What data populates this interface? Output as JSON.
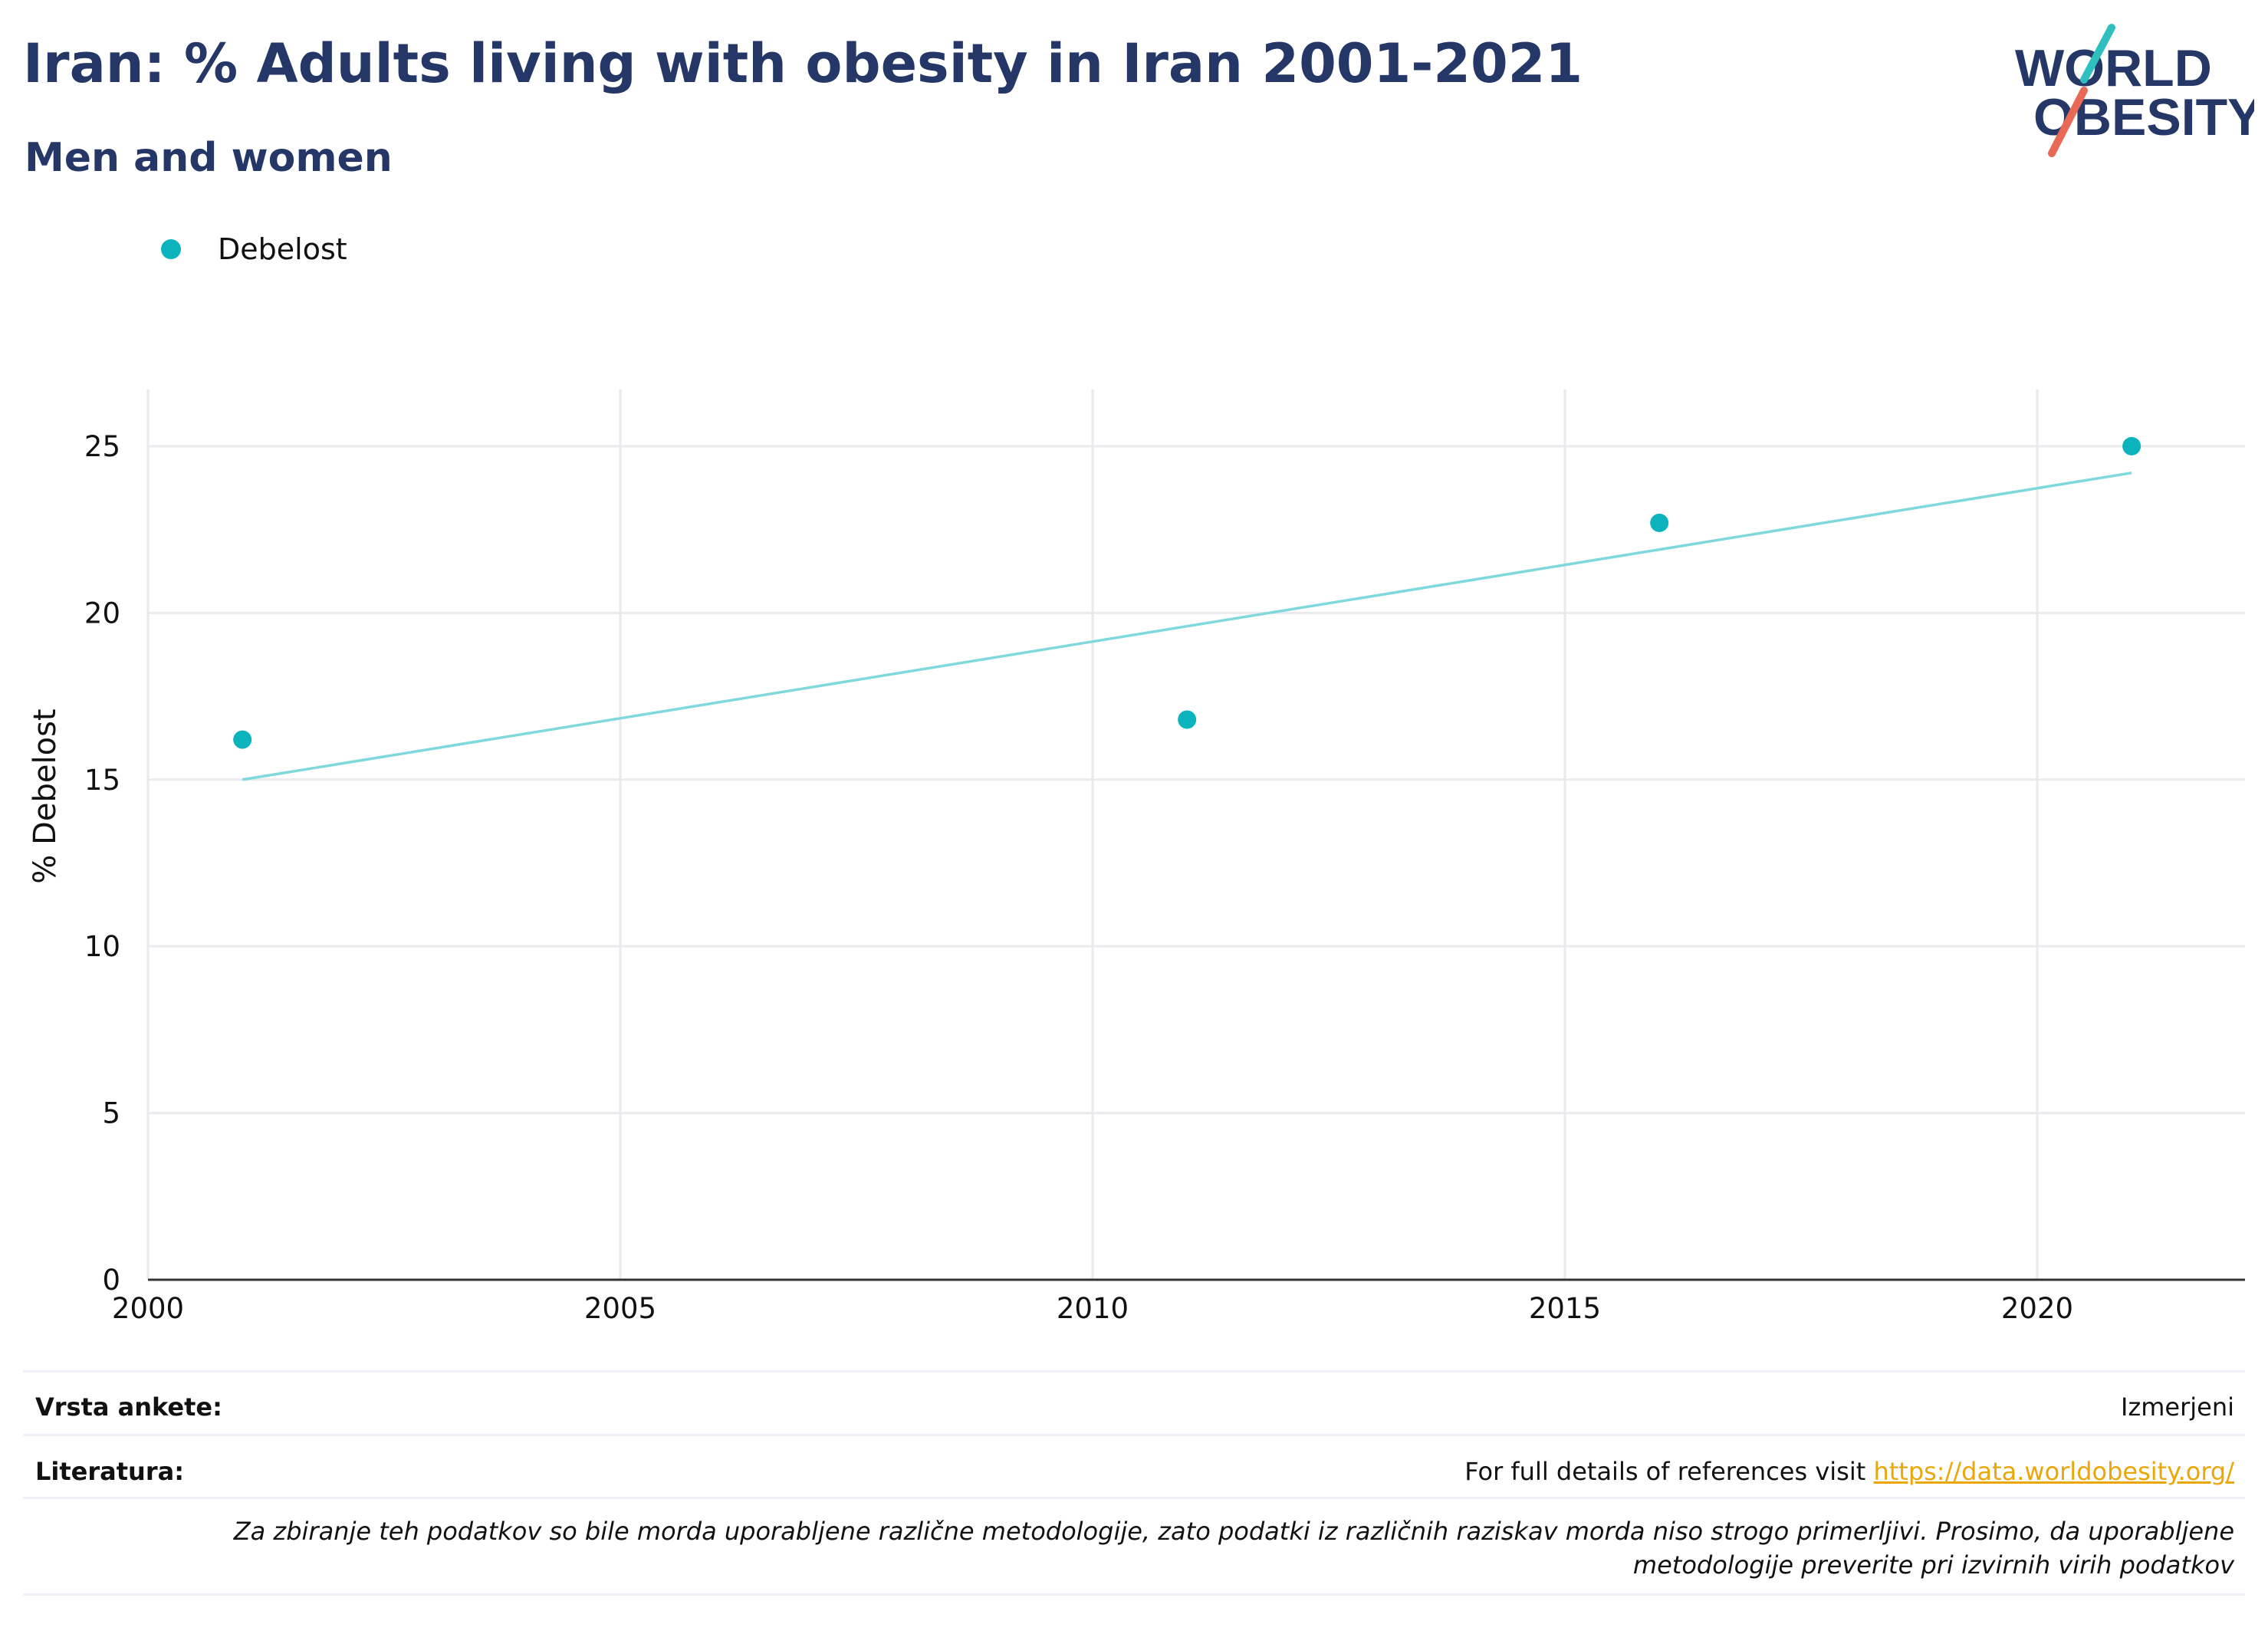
{
  "title": "Iran: % Adults living with obesity in Iran 2001-2021",
  "subtitle": "Men and women",
  "logo": {
    "line1": "WORLD",
    "line2": "OBESITY",
    "color": "#253766",
    "accent_teal": "#2fbfbf",
    "accent_red": "#e86a56"
  },
  "legend": {
    "label": "Debelost",
    "color": "#0bb3bd"
  },
  "chart_data": {
    "type": "scatter",
    "title": "",
    "xlabel": "",
    "ylabel": "% Debelost",
    "xlim": [
      2000,
      2022.2
    ],
    "ylim": [
      0,
      26.7
    ],
    "x_ticks": [
      2000,
      2005,
      2010,
      2015,
      2020
    ],
    "y_ticks": [
      0,
      5,
      10,
      15,
      20,
      25
    ],
    "grid": true,
    "legend_position": "top-left",
    "series": [
      {
        "name": "Debelost",
        "color": "#0bb3bd",
        "points": [
          {
            "x": 2001,
            "y": 16.2
          },
          {
            "x": 2011,
            "y": 16.8
          },
          {
            "x": 2016,
            "y": 22.7
          },
          {
            "x": 2021,
            "y": 25.0
          }
        ]
      }
    ],
    "trendline": {
      "color": "#7fd8dc",
      "start": {
        "x": 2001,
        "y": 15.0
      },
      "end": {
        "x": 2021,
        "y": 24.2
      }
    }
  },
  "info": {
    "survey_label": "Vrsta ankete:",
    "survey_value": "Izmerjeni",
    "references_label": "Literatura:",
    "references_text": "For full details of references visit ",
    "references_link": "https://data.worldobesity.org/",
    "disclaimer": "Za zbiranje teh podatkov so bile morda uporabljene različne metodologije, zato podatki iz različnih raziskav morda niso strogo primerljivi. Prosimo, da uporabljene metodologije preverite pri izvirnih virih podatkov"
  }
}
